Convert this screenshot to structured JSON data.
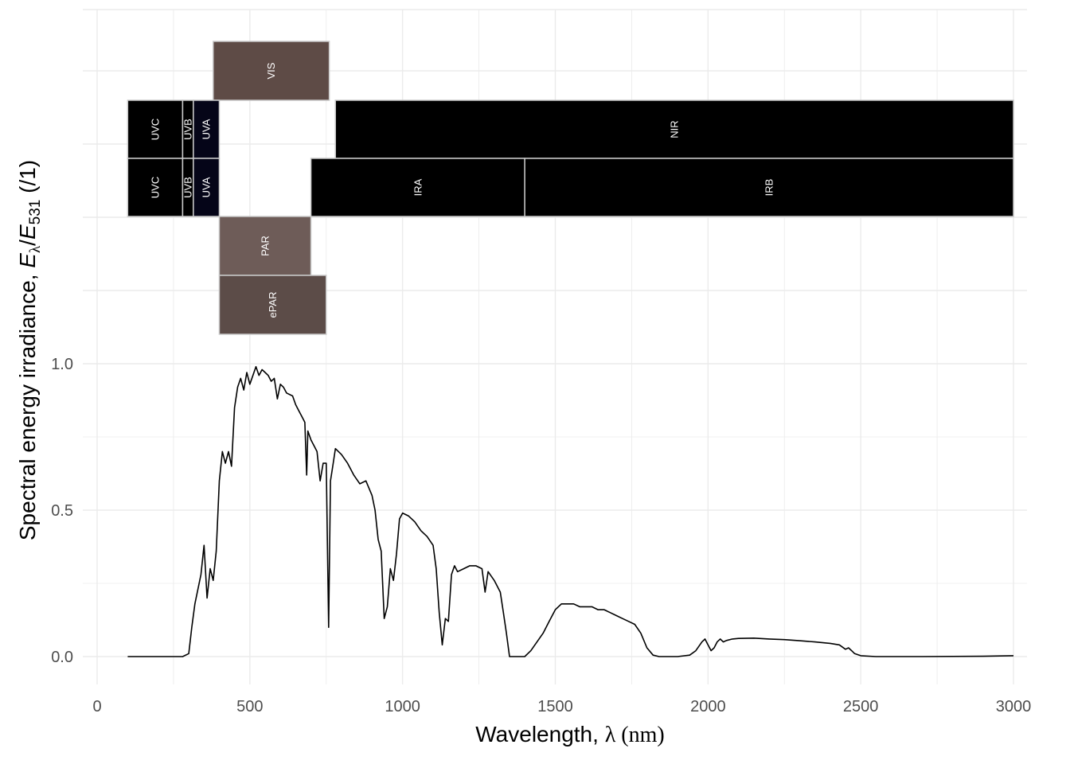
{
  "chart_data": {
    "type": "line",
    "xlabel_prefix": "Wavelength, ",
    "xlabel_symbol": "λ",
    "xlabel_suffix": " (nm)",
    "ylabel_prefix": "Spectral energy irradiance, ",
    "ylabel_E": "E",
    "ylabel_lambda_sub": "λ",
    "ylabel_slash": "/",
    "ylabel_E2": "E",
    "ylabel_531_sub": "531",
    "ylabel_suffix": " (/1)",
    "x_ticks": [
      0,
      500,
      1000,
      1500,
      2000,
      2500,
      3000
    ],
    "x_tick_labels": [
      "0",
      "500",
      "1000",
      "1500",
      "2000",
      "2500",
      "3000"
    ],
    "y_ticks": [
      0,
      0.5,
      1.0
    ],
    "y_tick_labels": [
      "0.0",
      "0.5",
      "1.0"
    ],
    "xlim": [
      -30,
      3060
    ],
    "grid": true,
    "series": [
      {
        "color": "#000000",
        "points": [
          [
            100,
            0
          ],
          [
            280,
            0
          ],
          [
            300,
            0.01
          ],
          [
            310,
            0.1
          ],
          [
            320,
            0.18
          ],
          [
            340,
            0.28
          ],
          [
            350,
            0.38
          ],
          [
            360,
            0.2
          ],
          [
            370,
            0.3
          ],
          [
            380,
            0.26
          ],
          [
            390,
            0.36
          ],
          [
            400,
            0.6
          ],
          [
            410,
            0.7
          ],
          [
            420,
            0.66
          ],
          [
            430,
            0.7
          ],
          [
            440,
            0.65
          ],
          [
            450,
            0.85
          ],
          [
            460,
            0.92
          ],
          [
            470,
            0.95
          ],
          [
            480,
            0.91
          ],
          [
            490,
            0.97
          ],
          [
            500,
            0.93
          ],
          [
            510,
            0.96
          ],
          [
            520,
            0.99
          ],
          [
            530,
            0.96
          ],
          [
            540,
            0.98
          ],
          [
            550,
            0.97
          ],
          [
            560,
            0.96
          ],
          [
            570,
            0.94
          ],
          [
            580,
            0.95
          ],
          [
            590,
            0.88
          ],
          [
            600,
            0.93
          ],
          [
            610,
            0.92
          ],
          [
            620,
            0.9
          ],
          [
            640,
            0.89
          ],
          [
            650,
            0.86
          ],
          [
            660,
            0.84
          ],
          [
            670,
            0.82
          ],
          [
            680,
            0.8
          ],
          [
            686,
            0.62
          ],
          [
            690,
            0.77
          ],
          [
            700,
            0.74
          ],
          [
            710,
            0.72
          ],
          [
            720,
            0.7
          ],
          [
            730,
            0.6
          ],
          [
            740,
            0.66
          ],
          [
            750,
            0.66
          ],
          [
            758,
            0.1
          ],
          [
            764,
            0.6
          ],
          [
            770,
            0.64
          ],
          [
            780,
            0.71
          ],
          [
            800,
            0.69
          ],
          [
            820,
            0.66
          ],
          [
            840,
            0.62
          ],
          [
            860,
            0.59
          ],
          [
            880,
            0.6
          ],
          [
            900,
            0.55
          ],
          [
            910,
            0.5
          ],
          [
            920,
            0.4
          ],
          [
            930,
            0.36
          ],
          [
            940,
            0.13
          ],
          [
            950,
            0.17
          ],
          [
            960,
            0.3
          ],
          [
            970,
            0.26
          ],
          [
            980,
            0.35
          ],
          [
            990,
            0.47
          ],
          [
            1000,
            0.49
          ],
          [
            1020,
            0.48
          ],
          [
            1040,
            0.46
          ],
          [
            1060,
            0.43
          ],
          [
            1080,
            0.41
          ],
          [
            1100,
            0.38
          ],
          [
            1110,
            0.3
          ],
          [
            1120,
            0.15
          ],
          [
            1130,
            0.04
          ],
          [
            1140,
            0.13
          ],
          [
            1150,
            0.12
          ],
          [
            1160,
            0.28
          ],
          [
            1170,
            0.31
          ],
          [
            1180,
            0.29
          ],
          [
            1200,
            0.3
          ],
          [
            1220,
            0.31
          ],
          [
            1240,
            0.31
          ],
          [
            1260,
            0.3
          ],
          [
            1270,
            0.22
          ],
          [
            1280,
            0.29
          ],
          [
            1300,
            0.26
          ],
          [
            1320,
            0.22
          ],
          [
            1330,
            0.15
          ],
          [
            1340,
            0.08
          ],
          [
            1350,
            0.0
          ],
          [
            1380,
            0.0
          ],
          [
            1400,
            0.0
          ],
          [
            1420,
            0.02
          ],
          [
            1440,
            0.05
          ],
          [
            1460,
            0.08
          ],
          [
            1480,
            0.12
          ],
          [
            1500,
            0.16
          ],
          [
            1520,
            0.18
          ],
          [
            1540,
            0.18
          ],
          [
            1560,
            0.18
          ],
          [
            1580,
            0.17
          ],
          [
            1600,
            0.17
          ],
          [
            1620,
            0.17
          ],
          [
            1640,
            0.16
          ],
          [
            1660,
            0.16
          ],
          [
            1680,
            0.15
          ],
          [
            1700,
            0.14
          ],
          [
            1720,
            0.13
          ],
          [
            1740,
            0.12
          ],
          [
            1760,
            0.11
          ],
          [
            1780,
            0.08
          ],
          [
            1800,
            0.03
          ],
          [
            1820,
            0.005
          ],
          [
            1840,
            0.0
          ],
          [
            1870,
            0.0
          ],
          [
            1900,
            0.0
          ],
          [
            1940,
            0.005
          ],
          [
            1960,
            0.02
          ],
          [
            1980,
            0.05
          ],
          [
            1990,
            0.06
          ],
          [
            2000,
            0.04
          ],
          [
            2010,
            0.02
          ],
          [
            2020,
            0.03
          ],
          [
            2030,
            0.05
          ],
          [
            2040,
            0.06
          ],
          [
            2050,
            0.05
          ],
          [
            2060,
            0.055
          ],
          [
            2080,
            0.06
          ],
          [
            2100,
            0.062
          ],
          [
            2150,
            0.063
          ],
          [
            2200,
            0.06
          ],
          [
            2250,
            0.058
          ],
          [
            2300,
            0.054
          ],
          [
            2350,
            0.05
          ],
          [
            2400,
            0.045
          ],
          [
            2430,
            0.04
          ],
          [
            2450,
            0.025
          ],
          [
            2460,
            0.03
          ],
          [
            2470,
            0.02
          ],
          [
            2480,
            0.01
          ],
          [
            2500,
            0.003
          ],
          [
            2550,
            0.0
          ],
          [
            2700,
            0.0
          ],
          [
            2900,
            0.001
          ],
          [
            3000,
            0.003
          ]
        ]
      }
    ],
    "bands": [
      {
        "label": "VIS",
        "row": 1,
        "x0": 380,
        "x1": 760,
        "fill": "#5e4b46"
      },
      {
        "label": "UVC",
        "row": 2,
        "x0": 100,
        "x1": 280,
        "fill": "#000000"
      },
      {
        "label": "UVB",
        "row": 2,
        "x0": 280,
        "x1": 315,
        "fill": "#000000"
      },
      {
        "label": "UVA",
        "row": 2,
        "x0": 315,
        "x1": 400,
        "fill": "#050518"
      },
      {
        "label": "NIR",
        "row": 2,
        "x0": 780,
        "x1": 3000,
        "fill": "#000000"
      },
      {
        "label": "UVC",
        "row": 3,
        "x0": 100,
        "x1": 280,
        "fill": "#000000"
      },
      {
        "label": "UVB",
        "row": 3,
        "x0": 280,
        "x1": 315,
        "fill": "#000000"
      },
      {
        "label": "UVA",
        "row": 3,
        "x0": 315,
        "x1": 400,
        "fill": "#050518"
      },
      {
        "label": "IRA",
        "row": 3,
        "x0": 700,
        "x1": 1400,
        "fill": "#000000"
      },
      {
        "label": "IRB",
        "row": 3,
        "x0": 1400,
        "x1": 3000,
        "fill": "#000000"
      },
      {
        "label": "PAR",
        "row": 4,
        "x0": 400,
        "x1": 700,
        "fill": "#6e5c58"
      },
      {
        "label": "ePAR",
        "row": 5,
        "x0": 400,
        "x1": 750,
        "fill": "#5c4c48"
      }
    ]
  }
}
